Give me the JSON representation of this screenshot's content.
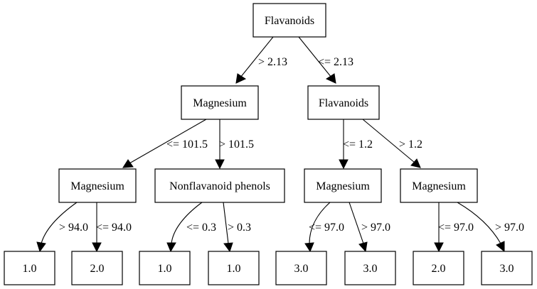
{
  "nodes": {
    "root": "Flavanoids",
    "l1": "Magnesium",
    "r1": "Flavanoids",
    "l2a": "Magnesium",
    "l2b": "Nonflavanoid phenols",
    "r2a": "Magnesium",
    "r2b": "Magnesium",
    "leaf1": "1.0",
    "leaf2": "2.0",
    "leaf3": "1.0",
    "leaf4": "1.0",
    "leaf5": "3.0",
    "leaf6": "3.0",
    "leaf7": "2.0",
    "leaf8": "3.0"
  },
  "edges": {
    "root_l1": "> 2.13",
    "root_r1": "<= 2.13",
    "l1_l2a": "<= 101.5",
    "l1_l2b": "> 101.5",
    "r1_r2a": "<= 1.2",
    "r1_r2b": "> 1.2",
    "l2a_leaf1": "> 94.0",
    "l2a_leaf2": "<= 94.0",
    "l2b_leaf3": "<= 0.3",
    "l2b_leaf4": "> 0.3",
    "r2a_leaf5": "<= 97.0",
    "r2a_leaf6": "> 97.0",
    "r2b_leaf7": "<= 97.0",
    "r2b_leaf8": "> 97.0"
  }
}
